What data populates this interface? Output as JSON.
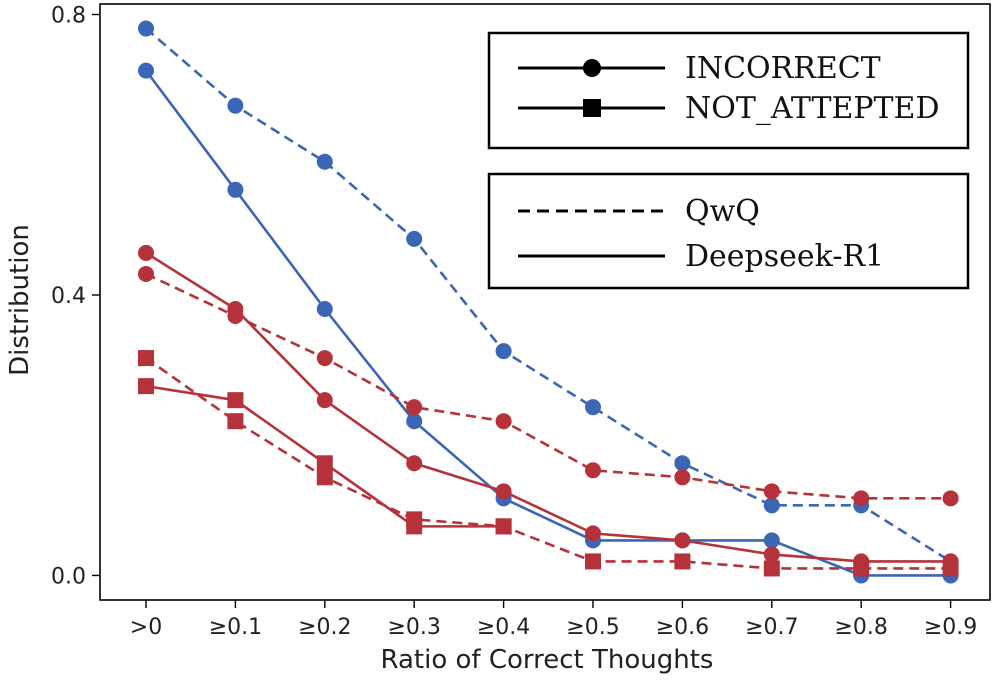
{
  "chart_data": {
    "type": "line",
    "title": "",
    "xlabel": "Ratio of Correct Thoughts",
    "ylabel": "Distribution",
    "categories": [
      ">0",
      "≥0.1",
      "≥0.2",
      "≥0.3",
      "≥0.4",
      "≥0.5",
      "≥0.6",
      "≥0.7",
      "≥0.8",
      "≥0.9"
    ],
    "ylim": [
      -0.035,
      0.815
    ],
    "yticks": [
      0.0,
      0.4,
      0.8
    ],
    "ytick_labels": [
      "0.0",
      "0.4",
      "0.8"
    ],
    "grid": false,
    "series": [
      {
        "name": "QwQ INCORRECT",
        "model": "QwQ",
        "metric": "INCORRECT",
        "color": "#3a66b5",
        "dash": "dashed",
        "marker": "circle",
        "values": [
          0.78,
          0.67,
          0.59,
          0.48,
          0.32,
          0.24,
          0.16,
          0.1,
          0.1,
          0.02
        ]
      },
      {
        "name": "Deepseek-R1 INCORRECT",
        "model": "Deepseek-R1",
        "metric": "INCORRECT",
        "color": "#3a66b5",
        "dash": "solid",
        "marker": "circle",
        "values": [
          0.72,
          0.55,
          0.38,
          0.22,
          0.11,
          0.05,
          0.05,
          0.05,
          0.0,
          0.0
        ]
      },
      {
        "name": "QwQ INCORRECT (red)",
        "model": "QwQ",
        "metric": "INCORRECT",
        "color": "#b5323a",
        "dash": "dashed",
        "marker": "circle",
        "values": [
          0.43,
          0.37,
          0.31,
          0.24,
          0.22,
          0.15,
          0.14,
          0.12,
          0.11,
          0.11
        ]
      },
      {
        "name": "Deepseek-R1 INCORRECT (red)",
        "model": "Deepseek-R1",
        "metric": "INCORRECT",
        "color": "#b5323a",
        "dash": "solid",
        "marker": "circle",
        "values": [
          0.46,
          0.38,
          0.25,
          0.16,
          0.12,
          0.06,
          0.05,
          0.03,
          0.02,
          0.02
        ]
      },
      {
        "name": "QwQ NOT_ATTEPTED",
        "model": "QwQ",
        "metric": "NOT_ATTEPTED",
        "color": "#b5323a",
        "dash": "dashed",
        "marker": "square",
        "values": [
          0.31,
          0.22,
          0.14,
          0.08,
          0.07,
          0.02,
          0.02,
          0.01,
          0.01,
          0.01
        ]
      },
      {
        "name": "Deepseek-R1 NOT_ATTEPTED",
        "model": "Deepseek-R1",
        "metric": "NOT_ATTEPTED",
        "color": "#b5323a",
        "dash": "solid",
        "marker": "square",
        "values": [
          0.27,
          0.25,
          0.16,
          0.07,
          0.07,
          null,
          null,
          null,
          null,
          null
        ]
      }
    ],
    "legend": {
      "placement": "top-right",
      "markers": [
        {
          "label": "INCORRECT",
          "marker": "circle"
        },
        {
          "label": "NOT_ATTEPTED",
          "marker": "square"
        }
      ],
      "models": [
        {
          "label": "QwQ",
          "dash": "dashed"
        },
        {
          "label": "Deepseek-R1",
          "dash": "solid"
        }
      ]
    }
  }
}
